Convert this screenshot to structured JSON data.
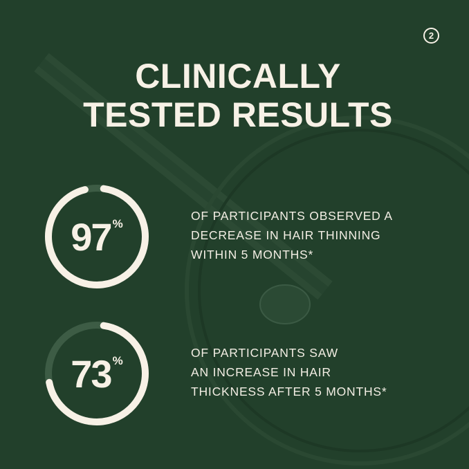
{
  "page_badge": "2",
  "title": {
    "line1": "CLINICALLY",
    "line2": "TESTED RESULTS"
  },
  "stats": [
    {
      "value": "97",
      "unit": "%",
      "percent": 97,
      "lines": [
        "OF PARTICIPANTS OBSERVED A",
        "DECREASE IN HAIR THINNING",
        "WITHIN 5 MONTHS*"
      ]
    },
    {
      "value": "73",
      "unit": "%",
      "percent": 73,
      "lines": [
        "OF PARTICIPANTS SAW",
        "AN INCREASE IN HAIR",
        "THICKNESS AFTER 5 MONTHS*"
      ]
    }
  ],
  "colors": {
    "background": "#22402b",
    "ring": "#f7f1e6",
    "ring_track": "#3d5c45",
    "text": "#f7f1e6"
  }
}
